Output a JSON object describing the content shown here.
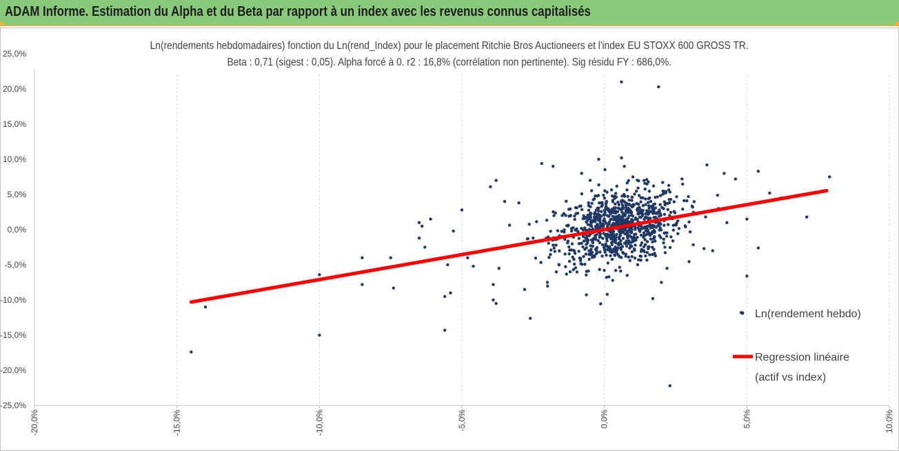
{
  "header": {
    "title": "ADAM Informe. Estimation du Alpha et du Beta par rapport à un index avec les revenus connus capitalisés"
  },
  "colors": {
    "banner": "#88c97a",
    "accent": "#e8b13a",
    "points": "#1f3864",
    "regression": "#ff0000"
  },
  "chart_data": {
    "type": "scatter",
    "title": "Ln(rendements hebdomadaires) fonction du Ln(rend_Index) pour le placement Ritchie Bros Auctioneers  et l'index EU STOXX 600 GROSS TR.",
    "subtitle": "Beta : 0,71 (sigest : 0,05). Alpha forcé à 0. r2 : 16,8% (corrélation non pertinente). Sig résidu FY : 686,0%.",
    "xlim": [
      -0.2,
      0.1
    ],
    "ylim": [
      -0.25,
      0.25
    ],
    "x_ticks": [
      -0.2,
      -0.15,
      -0.1,
      -0.05,
      0.0,
      0.05,
      0.1
    ],
    "x_tick_labels": [
      "-20,0%",
      "-15,0%",
      "-10,0%",
      "-5,0%",
      "0,0%",
      "5,0%",
      "10,0%"
    ],
    "y_ticks": [
      0.25,
      0.2,
      0.15,
      0.1,
      0.05,
      0.0,
      -0.05,
      -0.1,
      -0.15,
      -0.2,
      -0.25
    ],
    "y_tick_labels": [
      "25,0%",
      "20,0%",
      "15,0%",
      "10,0%",
      "5,0%",
      "0,0%",
      "-5,0%",
      "-10,0%",
      "-15,0%",
      "-20,0%",
      "-25,0%"
    ],
    "grid": "vertical",
    "legend_position": "right",
    "legend": [
      {
        "label": "Ln(rendement hebdo)",
        "kind": "point"
      },
      {
        "label": "Regression linéaire",
        "label2": "(actif vs index)",
        "kind": "line"
      }
    ],
    "regression": {
      "slope": 0.71,
      "intercept": 0,
      "x": [
        -0.145,
        0.078
      ]
    },
    "series": [
      {
        "name": "Ln(rendement hebdo)",
        "points": [
          [
            -0.145,
            -0.174
          ],
          [
            -0.14,
            -0.11
          ],
          [
            -0.1,
            -0.064
          ],
          [
            -0.1,
            -0.15
          ],
          [
            -0.085,
            -0.04
          ],
          [
            -0.085,
            -0.078
          ],
          [
            -0.075,
            -0.04
          ],
          [
            -0.074,
            -0.083
          ],
          [
            -0.065,
            0.01
          ],
          [
            -0.064,
            0.005
          ],
          [
            -0.065,
            -0.012
          ],
          [
            -0.063,
            -0.025
          ],
          [
            -0.061,
            0.015
          ],
          [
            -0.056,
            -0.095
          ],
          [
            -0.056,
            -0.143
          ],
          [
            -0.055,
            -0.05
          ],
          [
            -0.054,
            -0.09
          ],
          [
            -0.053,
            -0.002
          ],
          [
            -0.05,
            0.028
          ],
          [
            -0.048,
            -0.04
          ],
          [
            -0.046,
            -0.052
          ],
          [
            -0.04,
            0.061
          ],
          [
            -0.038,
            0.07
          ],
          [
            -0.039,
            -0.078
          ],
          [
            -0.039,
            -0.1
          ],
          [
            -0.038,
            -0.105
          ],
          [
            -0.037,
            -0.055
          ],
          [
            -0.026,
            -0.126
          ],
          [
            -0.028,
            -0.085
          ],
          [
            -0.022,
            0.094
          ],
          [
            -0.018,
            0.09
          ],
          [
            -0.03,
            0.038
          ],
          [
            -0.035,
            0.04
          ],
          [
            -0.025,
            -0.012
          ],
          [
            -0.02,
            -0.075
          ],
          [
            -0.012,
            -0.06
          ],
          [
            -0.008,
            0.08
          ],
          [
            -0.005,
            0.07
          ],
          [
            -0.002,
            0.1
          ],
          [
            0.006,
            0.102
          ],
          [
            0.007,
            0.09
          ],
          [
            0.01,
            0.075
          ],
          [
            0.015,
            0.065
          ],
          [
            0.006,
            0.21
          ],
          [
            0.019,
            0.203
          ],
          [
            0.022,
            -0.055
          ],
          [
            0.017,
            -0.098
          ],
          [
            0.023,
            -0.222
          ],
          [
            0.02,
            -0.075
          ],
          [
            0.036,
            0.092
          ],
          [
            0.038,
            -0.03
          ],
          [
            0.042,
            0.08
          ],
          [
            0.046,
            0.072
          ],
          [
            0.04,
            0.03
          ],
          [
            0.043,
            0.01
          ],
          [
            0.05,
            0.015
          ],
          [
            0.048,
            -0.118
          ],
          [
            0.05,
            -0.066
          ],
          [
            0.054,
            -0.026
          ],
          [
            0.054,
            0.083
          ],
          [
            0.058,
            0.052
          ],
          [
            0.062,
            0.045
          ],
          [
            0.071,
            0.018
          ],
          [
            0.079,
            0.075
          ],
          [
            0.004,
            -0.058
          ],
          [
            0.001,
            -0.092
          ],
          [
            0.008,
            -0.065
          ],
          [
            0.012,
            -0.043
          ]
        ]
      }
    ]
  }
}
